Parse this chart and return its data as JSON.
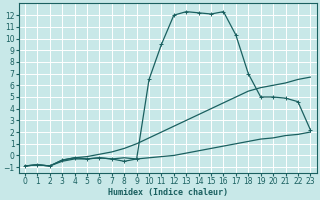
{
  "xlabel": "Humidex (Indice chaleur)",
  "bg_color": "#c8e8e8",
  "grid_color": "#ffffff",
  "line_color": "#1a6060",
  "xlim": [
    -0.5,
    23.5
  ],
  "ylim": [
    -1.5,
    13.0
  ],
  "xticks": [
    0,
    1,
    2,
    3,
    4,
    5,
    6,
    7,
    8,
    9,
    10,
    11,
    12,
    13,
    14,
    15,
    16,
    17,
    18,
    19,
    20,
    21,
    22,
    23
  ],
  "yticks": [
    -1,
    0,
    1,
    2,
    3,
    4,
    5,
    6,
    7,
    8,
    9,
    10,
    11,
    12
  ],
  "curve_peak_x": [
    0,
    1,
    2,
    3,
    4,
    5,
    6,
    7,
    8,
    9,
    10,
    11,
    12,
    13,
    14,
    15,
    16,
    17,
    18,
    19,
    20,
    21,
    22,
    23
  ],
  "curve_peak_y": [
    -0.9,
    -0.8,
    -0.9,
    -0.4,
    -0.2,
    -0.3,
    -0.2,
    -0.3,
    -0.5,
    -0.3,
    6.5,
    9.5,
    12.0,
    12.3,
    12.2,
    12.1,
    12.3,
    10.3,
    7.0,
    5.0,
    5.0,
    4.9,
    4.6,
    2.2
  ],
  "curve_upper_x": [
    0,
    1,
    2,
    3,
    4,
    5,
    6,
    7,
    8,
    9,
    10,
    11,
    12,
    13,
    14,
    15,
    16,
    17,
    18,
    19,
    20,
    21,
    22,
    23
  ],
  "curve_upper_y": [
    -0.9,
    -0.8,
    -0.9,
    -0.4,
    -0.2,
    -0.1,
    0.1,
    0.3,
    0.6,
    1.0,
    1.5,
    2.0,
    2.5,
    3.0,
    3.5,
    4.0,
    4.5,
    5.0,
    5.5,
    5.8,
    6.0,
    6.2,
    6.5,
    6.7
  ],
  "curve_lower_x": [
    0,
    1,
    2,
    3,
    4,
    5,
    6,
    7,
    8,
    9,
    10,
    11,
    12,
    13,
    14,
    15,
    16,
    17,
    18,
    19,
    20,
    21,
    22,
    23
  ],
  "curve_lower_y": [
    -0.9,
    -0.8,
    -0.9,
    -0.5,
    -0.3,
    -0.3,
    -0.2,
    -0.3,
    -0.2,
    -0.3,
    -0.2,
    -0.1,
    0.0,
    0.2,
    0.4,
    0.6,
    0.8,
    1.0,
    1.2,
    1.4,
    1.5,
    1.7,
    1.8,
    2.0
  ]
}
